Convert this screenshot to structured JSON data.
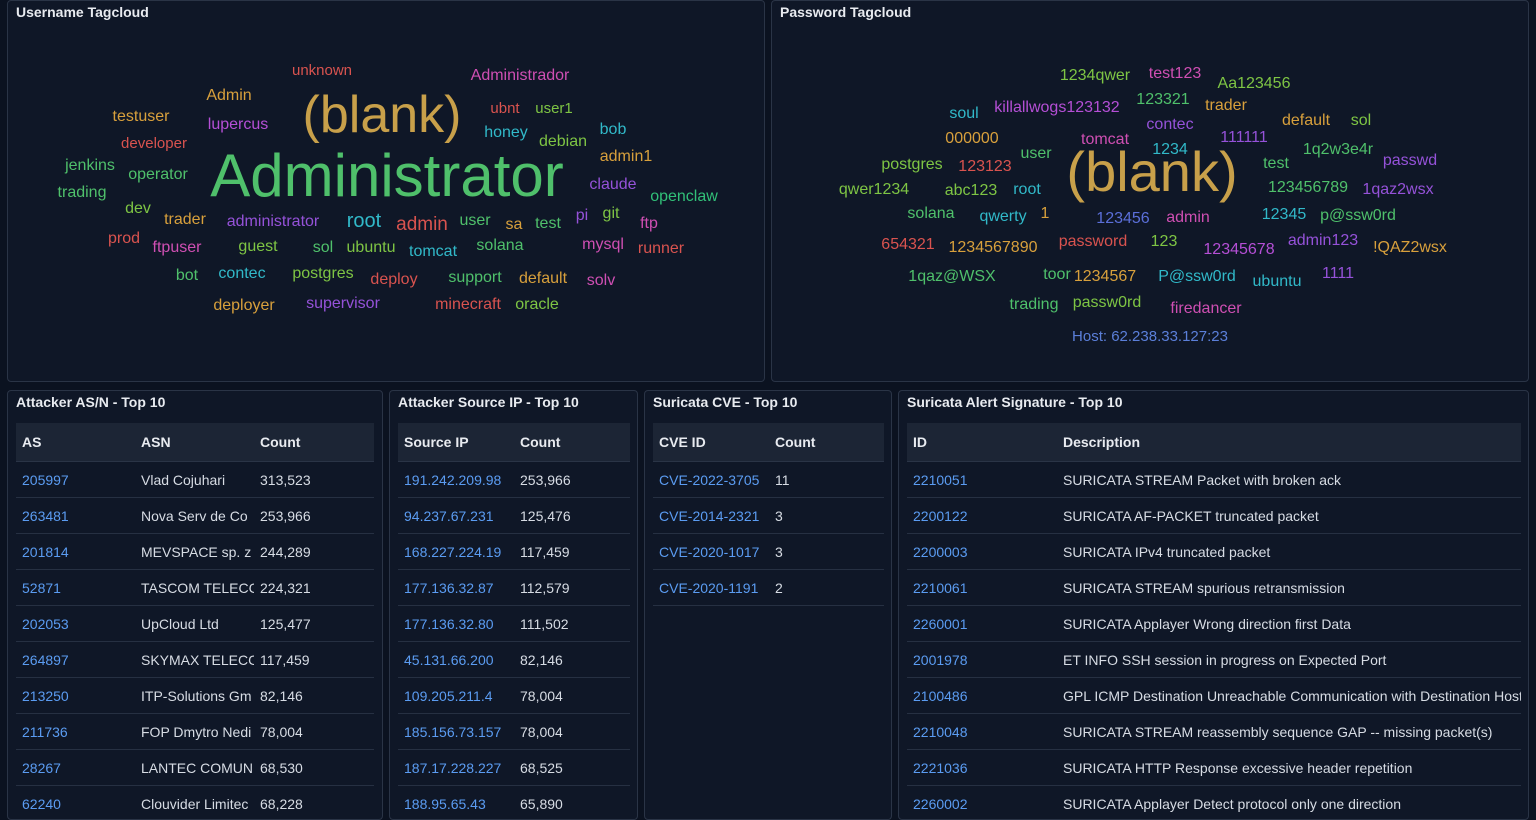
{
  "username_cloud": {
    "title": "Username Tagcloud",
    "words": [
      {
        "text": "unknown",
        "color": "#d9534f"
      },
      {
        "text": "Administrador",
        "color": "#cf4fb3"
      },
      {
        "text": "Admin",
        "color": "#d8a03c"
      },
      {
        "text": "(blank)",
        "color": "#c8a04a"
      },
      {
        "text": "ubnt",
        "color": "#d9534f"
      },
      {
        "text": "user1",
        "color": "#7ec544"
      },
      {
        "text": "testuser",
        "color": "#d8a03c"
      },
      {
        "text": "lupercus",
        "color": "#b54fd6"
      },
      {
        "text": "honey",
        "color": "#31b9c9"
      },
      {
        "text": "bob",
        "color": "#31b9c9"
      },
      {
        "text": "developer",
        "color": "#d9534f"
      },
      {
        "text": "debian",
        "color": "#7ec544"
      },
      {
        "text": "admin1",
        "color": "#d8a03c"
      },
      {
        "text": "jenkins",
        "color": "#4fc06b"
      },
      {
        "text": "Administrator",
        "color": "#4fc06b"
      },
      {
        "text": "operator",
        "color": "#4fc06b"
      },
      {
        "text": "claude",
        "color": "#9552d9"
      },
      {
        "text": "trading",
        "color": "#4fc06b"
      },
      {
        "text": "openclaw",
        "color": "#31c078"
      },
      {
        "text": "dev",
        "color": "#7ec544"
      },
      {
        "text": "trader",
        "color": "#d8a03c"
      },
      {
        "text": "administrator",
        "color": "#9552d9"
      },
      {
        "text": "root",
        "color": "#31b9c9"
      },
      {
        "text": "admin",
        "color": "#d9534f"
      },
      {
        "text": "user",
        "color": "#4fc06b"
      },
      {
        "text": "sa",
        "color": "#d8a03c"
      },
      {
        "text": "test",
        "color": "#4fc06b"
      },
      {
        "text": "pi",
        "color": "#9552d9"
      },
      {
        "text": "git",
        "color": "#7ec544"
      },
      {
        "text": "ftp",
        "color": "#cf4fb3"
      },
      {
        "text": "prod",
        "color": "#d9534f"
      },
      {
        "text": "ftpuser",
        "color": "#cf4fb3"
      },
      {
        "text": "guest",
        "color": "#7ec544"
      },
      {
        "text": "sol",
        "color": "#4fc06b"
      },
      {
        "text": "ubuntu",
        "color": "#7ec544"
      },
      {
        "text": "tomcat",
        "color": "#31b9c9"
      },
      {
        "text": "solana",
        "color": "#4fc06b"
      },
      {
        "text": "mysql",
        "color": "#cf4fb3"
      },
      {
        "text": "runner",
        "color": "#d9534f"
      },
      {
        "text": "bot",
        "color": "#4fc06b"
      },
      {
        "text": "contec",
        "color": "#31b9c9"
      },
      {
        "text": "postgres",
        "color": "#7ec544"
      },
      {
        "text": "deploy",
        "color": "#d9534f"
      },
      {
        "text": "support",
        "color": "#4fc06b"
      },
      {
        "text": "default",
        "color": "#d8a03c"
      },
      {
        "text": "solv",
        "color": "#cf4fb3"
      },
      {
        "text": "deployer",
        "color": "#d8a03c"
      },
      {
        "text": "supervisor",
        "color": "#9552d9"
      },
      {
        "text": "minecraft",
        "color": "#d9534f"
      },
      {
        "text": "oracle",
        "color": "#7ec544"
      }
    ]
  },
  "password_cloud": {
    "title": "Password Tagcloud",
    "host_label": "Host: 62.238.33.127:23",
    "words": [
      {
        "text": "1234qwer",
        "color": "#7ec544"
      },
      {
        "text": "test123",
        "color": "#cf4fb3"
      },
      {
        "text": "Aa123456",
        "color": "#7ec544"
      },
      {
        "text": "123321",
        "color": "#4fc06b"
      },
      {
        "text": "trader",
        "color": "#d8a03c"
      },
      {
        "text": "soul",
        "color": "#31b9c9"
      },
      {
        "text": "killallwogs123132",
        "color": "#b54fd6"
      },
      {
        "text": "contec",
        "color": "#9552d9"
      },
      {
        "text": "default",
        "color": "#d8a03c"
      },
      {
        "text": "sol",
        "color": "#7ec544"
      },
      {
        "text": "000000",
        "color": "#d8a03c"
      },
      {
        "text": "tomcat",
        "color": "#cf4fb3"
      },
      {
        "text": "111111",
        "color": "#9552d9"
      },
      {
        "text": "user",
        "color": "#4fc06b"
      },
      {
        "text": "1234",
        "color": "#31b9c9"
      },
      {
        "text": "1q2w3e4r",
        "color": "#4fc06b"
      },
      {
        "text": "passwd",
        "color": "#9552d9"
      },
      {
        "text": "postgres",
        "color": "#7ec544"
      },
      {
        "text": "123123",
        "color": "#d9534f"
      },
      {
        "text": "(blank)",
        "color": "#c8a04a"
      },
      {
        "text": "test",
        "color": "#4fc06b"
      },
      {
        "text": "qwer1234",
        "color": "#7ec544"
      },
      {
        "text": "abc123",
        "color": "#7ec544"
      },
      {
        "text": "root",
        "color": "#31b9c9"
      },
      {
        "text": "123456789",
        "color": "#4fc06b"
      },
      {
        "text": "1qaz2wsx",
        "color": "#9552d9"
      },
      {
        "text": "solana",
        "color": "#4fc06b"
      },
      {
        "text": "qwerty",
        "color": "#31b9c9"
      },
      {
        "text": "1",
        "color": "#d8a03c"
      },
      {
        "text": "123456",
        "color": "#5b6fd9"
      },
      {
        "text": "admin",
        "color": "#cf4fb3"
      },
      {
        "text": "12345",
        "color": "#31b9c9"
      },
      {
        "text": "p@ssw0rd",
        "color": "#4fc06b"
      },
      {
        "text": "654321",
        "color": "#d9534f"
      },
      {
        "text": "1234567890",
        "color": "#d8a03c"
      },
      {
        "text": "password",
        "color": "#d9534f"
      },
      {
        "text": "123",
        "color": "#7ec544"
      },
      {
        "text": "12345678",
        "color": "#b54fd6"
      },
      {
        "text": "admin123",
        "color": "#9552d9"
      },
      {
        "text": "!QAZ2wsx",
        "color": "#d8a03c"
      },
      {
        "text": "1qaz@WSX",
        "color": "#4fc06b"
      },
      {
        "text": "toor",
        "color": "#4fc06b"
      },
      {
        "text": "1234567",
        "color": "#d8a03c"
      },
      {
        "text": "P@ssw0rd",
        "color": "#31b9c9"
      },
      {
        "text": "ubuntu",
        "color": "#31b9c9"
      },
      {
        "text": "1111",
        "color": "#9552d9"
      },
      {
        "text": "trading",
        "color": "#4fc06b"
      },
      {
        "text": "passw0rd",
        "color": "#7ec544"
      },
      {
        "text": "firedancer",
        "color": "#cf4fb3"
      }
    ]
  },
  "asn_table": {
    "title": "Attacker AS/N - Top 10",
    "columns": [
      "AS",
      "ASN",
      "Count"
    ],
    "rows": [
      [
        "205997",
        "Vlad Cojuhari",
        "313,523"
      ],
      [
        "263481",
        "Nova Serv de Co",
        "253,966"
      ],
      [
        "201814",
        "MEVSPACE sp. z",
        "244,289"
      ],
      [
        "52871",
        "TASCOM TELECC",
        "224,321"
      ],
      [
        "202053",
        "UpCloud Ltd",
        "125,477"
      ],
      [
        "264897",
        "SKYMAX TELECC",
        "117,459"
      ],
      [
        "213250",
        "ITP-Solutions Gm",
        "82,146"
      ],
      [
        "211736",
        "FOP Dmytro Nedi",
        "78,004"
      ],
      [
        "28267",
        "LANTEC COMUN",
        "68,530"
      ],
      [
        "62240",
        "Clouvider Limitec",
        "68,228"
      ]
    ]
  },
  "ip_table": {
    "title": "Attacker Source IP - Top 10",
    "columns": [
      "Source IP",
      "Count"
    ],
    "rows": [
      [
        "191.242.209.98",
        "253,966"
      ],
      [
        "94.237.67.231",
        "125,476"
      ],
      [
        "168.227.224.19",
        "117,459"
      ],
      [
        "177.136.32.87",
        "112,579"
      ],
      [
        "177.136.32.80",
        "111,502"
      ],
      [
        "45.131.66.200",
        "82,146"
      ],
      [
        "109.205.211.4",
        "78,004"
      ],
      [
        "185.156.73.157",
        "78,004"
      ],
      [
        "187.17.228.227",
        "68,525"
      ],
      [
        "188.95.65.43",
        "65,890"
      ]
    ]
  },
  "cve_table": {
    "title": "Suricata CVE - Top 10",
    "columns": [
      "CVE ID",
      "Count"
    ],
    "rows": [
      [
        "CVE-2022-3705",
        "11"
      ],
      [
        "CVE-2014-2321",
        "3"
      ],
      [
        "CVE-2020-1017",
        "3"
      ],
      [
        "CVE-2020-1191",
        "2"
      ]
    ]
  },
  "sig_table": {
    "title": "Suricata Alert Signature - Top 10",
    "columns": [
      "ID",
      "Description"
    ],
    "rows": [
      [
        "2210051",
        "SURICATA STREAM Packet with broken ack"
      ],
      [
        "2200122",
        "SURICATA AF-PACKET truncated packet"
      ],
      [
        "2200003",
        "SURICATA IPv4 truncated packet"
      ],
      [
        "2210061",
        "SURICATA STREAM spurious retransmission"
      ],
      [
        "2260001",
        "SURICATA Applayer Wrong direction first Data"
      ],
      [
        "2001978",
        "ET INFO SSH session in progress on Expected Port"
      ],
      [
        "2100486",
        "GPL ICMP Destination Unreachable Communication with Destination Host is Administratively Prohibited"
      ],
      [
        "2210048",
        "SURICATA STREAM reassembly sequence GAP -- missing packet(s)"
      ],
      [
        "2221036",
        "SURICATA HTTP Response excessive header repetition"
      ],
      [
        "2260002",
        "SURICATA Applayer Detect protocol only one direction"
      ]
    ]
  }
}
